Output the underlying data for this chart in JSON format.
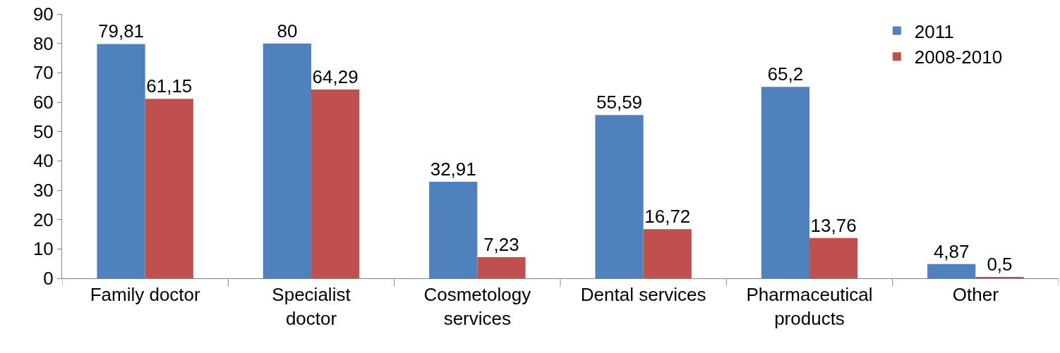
{
  "chart_data": {
    "type": "bar",
    "categories": [
      "Family doctor",
      "Specialist doctor",
      "Cosmetology services",
      "Dental services",
      "Pharmaceutical products",
      "Other"
    ],
    "series": [
      {
        "name": "2011",
        "color": "#4f81bd",
        "values": [
          79.81,
          80,
          32.91,
          55.59,
          65.2,
          4.87
        ],
        "value_labels": [
          "79,81",
          "80",
          "32,91",
          "55,59",
          "65,2",
          "4,87"
        ]
      },
      {
        "name": "2008-2010",
        "color": "#c0504d",
        "values": [
          61.15,
          64.29,
          7.23,
          16.72,
          13.76,
          0.5
        ],
        "value_labels": [
          "61,15",
          "64,29",
          "7,23",
          "16,72",
          "13,76",
          "0,5"
        ]
      }
    ],
    "ylim": [
      0,
      90
    ],
    "yticks": [
      0,
      10,
      20,
      30,
      40,
      50,
      60,
      70,
      80,
      90
    ],
    "grid": false,
    "legend": "top right"
  }
}
